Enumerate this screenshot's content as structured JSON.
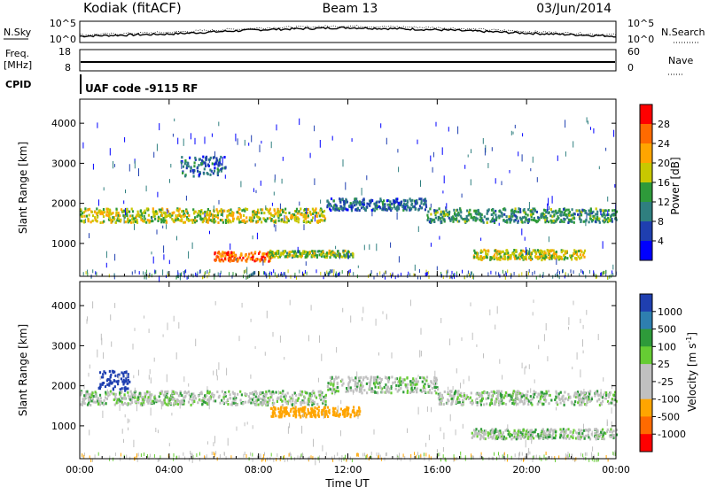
{
  "header": {
    "station": "Kodiak (fitACF)",
    "beam": "Beam 13",
    "date": "03/Jun/2014"
  },
  "top_panels": {
    "nsky_label": "N.Sky",
    "nsearch_label": "N.Search",
    "freq_label": "Freq.",
    "freq_unit": "[MHz]",
    "nave_label": "Nave",
    "cpid_label": "CPID",
    "cpid_value": "UAF code -9115 RF",
    "noise_left_ticks": [
      "10^5",
      "10^0"
    ],
    "noise_right_ticks": [
      "10^5",
      "10^0"
    ],
    "freq_ticks": [
      "18",
      "8"
    ],
    "nave_ticks": [
      "60",
      "0"
    ]
  },
  "chart_data": [
    {
      "type": "line",
      "title": "N.Sky / N.Search",
      "x": [
        "00:00",
        "04:00",
        "08:00",
        "12:00",
        "16:00",
        "20:00",
        "00:00"
      ],
      "series": [
        {
          "name": "N.Sky",
          "values": [
            1.5,
            2.0,
            3.0,
            3.5,
            3.0,
            2.2,
            1.5
          ]
        },
        {
          "name": "N.Search",
          "values": [
            1.8,
            2.4,
            3.4,
            3.9,
            3.5,
            2.6,
            1.8
          ]
        }
      ],
      "ylim": [
        0,
        5
      ],
      "colors": {
        "line": "#000000"
      }
    },
    {
      "type": "line",
      "title": "Freq. / Nave",
      "x": [
        "00:00",
        "04:00",
        "08:00",
        "12:00",
        "16:00",
        "20:00",
        "00:00"
      ],
      "series": [
        {
          "name": "Freq.",
          "values": [
            10.9,
            10.9,
            10.9,
            10.9,
            10.9,
            10.9,
            10.9
          ]
        }
      ],
      "ylim": [
        8,
        18
      ]
    },
    {
      "type": "heatmap",
      "title": "Power",
      "ylabel": "Slant Range [km]",
      "yticks": [
        "1000",
        "2000",
        "3000",
        "4000"
      ],
      "xticks": [
        "00:00",
        "04:00",
        "08:00",
        "12:00",
        "16:00",
        "20:00",
        "00:00"
      ],
      "xlim_hours": [
        0,
        24
      ],
      "ylim": [
        180,
        4600
      ],
      "colorbar": {
        "label": "Power [dB]",
        "ticks": [
          "4",
          "8",
          "12",
          "16",
          "20",
          "24",
          "28"
        ],
        "colors": [
          "#0000ff",
          "#1f3fb0",
          "#2f7f7f",
          "#2e9a3a",
          "#c8c800",
          "#ffa500",
          "#ff6a00",
          "#ff0000"
        ]
      },
      "bands": [
        {
          "x": [
            0.0,
            11.0
          ],
          "y": [
            1550,
            1900
          ],
          "level": 16
        },
        {
          "x": [
            11.0,
            15.5
          ],
          "y": [
            1850,
            2150
          ],
          "level": 6
        },
        {
          "x": [
            15.5,
            24.0
          ],
          "y": [
            1550,
            1900
          ],
          "level": 10
        },
        {
          "x": [
            6.0,
            8.6
          ],
          "y": [
            580,
            820
          ],
          "level": 24
        },
        {
          "x": [
            8.4,
            12.2
          ],
          "y": [
            680,
            850
          ],
          "level": 14
        },
        {
          "x": [
            17.6,
            22.6
          ],
          "y": [
            620,
            870
          ],
          "level": 16
        },
        {
          "x": [
            4.5,
            6.5
          ],
          "y": [
            2700,
            3200
          ],
          "level": 6
        }
      ]
    },
    {
      "type": "heatmap",
      "title": "Velocity",
      "ylabel": "Slant Range [km]",
      "xlabel": "Time UT",
      "yticks": [
        "1000",
        "2000",
        "3000",
        "4000"
      ],
      "xticks": [
        "00:00",
        "04:00",
        "08:00",
        "12:00",
        "16:00",
        "20:00",
        "00:00"
      ],
      "xlim_hours": [
        0,
        24
      ],
      "ylim": [
        180,
        4600
      ],
      "colorbar": {
        "label": "Velocity [m s-1]",
        "ticks": [
          "1000",
          "500",
          "100",
          "25",
          "-25",
          "-100",
          "-500",
          "-1000"
        ],
        "colors": [
          "#1f3fb0",
          "#2e7fb0",
          "#2e9a3a",
          "#66cc33",
          "#c0c0c0",
          "#c0c0c0",
          "#ffa500",
          "#ff6a00",
          "#ff0000"
        ]
      },
      "bands": [
        {
          "x": [
            0.0,
            11.0
          ],
          "y": [
            1550,
            1900
          ],
          "velocity": 0
        },
        {
          "x": [
            11.0,
            16.0
          ],
          "y": [
            1850,
            2250
          ],
          "velocity": 0
        },
        {
          "x": [
            16.0,
            24.0
          ],
          "y": [
            1550,
            1900
          ],
          "velocity": 0
        },
        {
          "x": [
            8.5,
            12.5
          ],
          "y": [
            1250,
            1500
          ],
          "velocity": -200
        },
        {
          "x": [
            0.8,
            2.2
          ],
          "y": [
            1900,
            2400
          ],
          "velocity": 800
        },
        {
          "x": [
            17.5,
            24.0
          ],
          "y": [
            700,
            950
          ],
          "velocity": 0
        }
      ]
    }
  ],
  "axes": {
    "range_label": "Slant Range [km]",
    "power_label": "Power [dB]",
    "velocity_label": "Velocity [m s",
    "velocity_label_sup": "-1",
    "time_label": "Time UT"
  }
}
